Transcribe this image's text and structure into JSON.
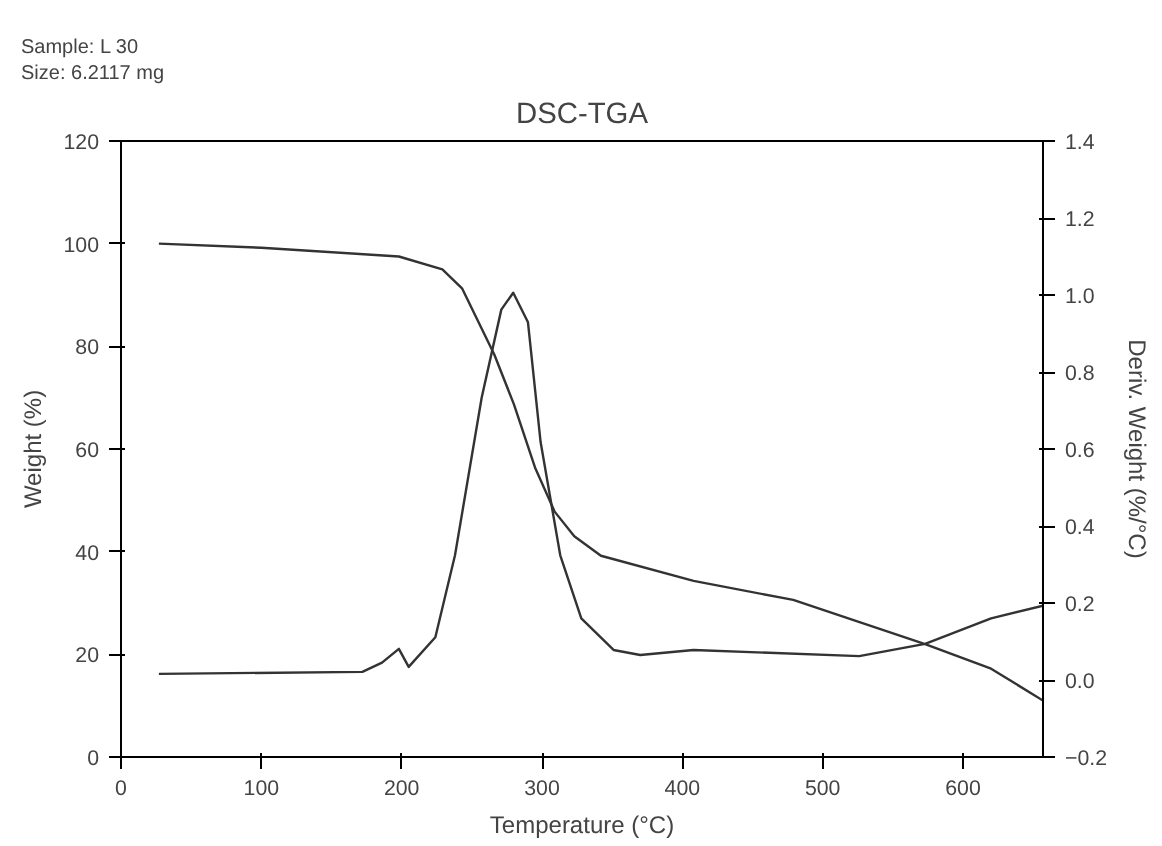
{
  "chart_data": {
    "type": "line",
    "title": "DSC-TGA",
    "annotations": [
      "Sample: L 30",
      "Size:   6.2117 mg"
    ],
    "xlabel": "Temperature (°C)",
    "ylabel": "Weight (%)",
    "y2label": "Deriv. Weight (%/°C)",
    "xlim": [
      0,
      657
    ],
    "xticks": [
      0,
      100,
      200,
      300,
      400,
      500,
      600
    ],
    "ylim": [
      0,
      120
    ],
    "yticks": [
      0,
      20,
      40,
      60,
      80,
      100,
      120
    ],
    "y2lim": [
      -0.2,
      1.4
    ],
    "y2ticks": [
      -0.2,
      {
        "value": 0.0,
        "label": "0.0"
      },
      0.2,
      0.4,
      0.6,
      0.8,
      {
        "value": 1.0,
        "label": "1.0"
      },
      1.2,
      1.4
    ],
    "grid": false,
    "marker": "none",
    "line_style": "solid",
    "series": [
      {
        "color": "#333333",
        "x": [
          27,
          100,
          198,
          229,
          243,
          266,
          280,
          295,
          309,
          323,
          342,
          408,
          479,
          573,
          620,
          657
        ],
        "values": [
          100,
          99.2,
          97.5,
          95,
          91.3,
          78.4,
          68.7,
          56.4,
          47.8,
          43,
          39.2,
          34.3,
          30.6,
          22,
          17.2,
          11
        ]
      },
      {
        "color": "#333333",
        "axis": "y2",
        "x": [
          27,
          172,
          186,
          198,
          205,
          224,
          238,
          257,
          271,
          279.5,
          290,
          299,
          313,
          328,
          351,
          370,
          408,
          526,
          573,
          620,
          657
        ],
        "values": [
          0.016,
          0.021,
          0.045,
          0.081,
          0.034,
          0.111,
          0.324,
          0.733,
          0.962,
          1.006,
          0.929,
          0.618,
          0.324,
          0.16,
          0.078,
          0.065,
          0.078,
          0.062,
          0.094,
          0.16,
          0.193
        ]
      }
    ]
  }
}
